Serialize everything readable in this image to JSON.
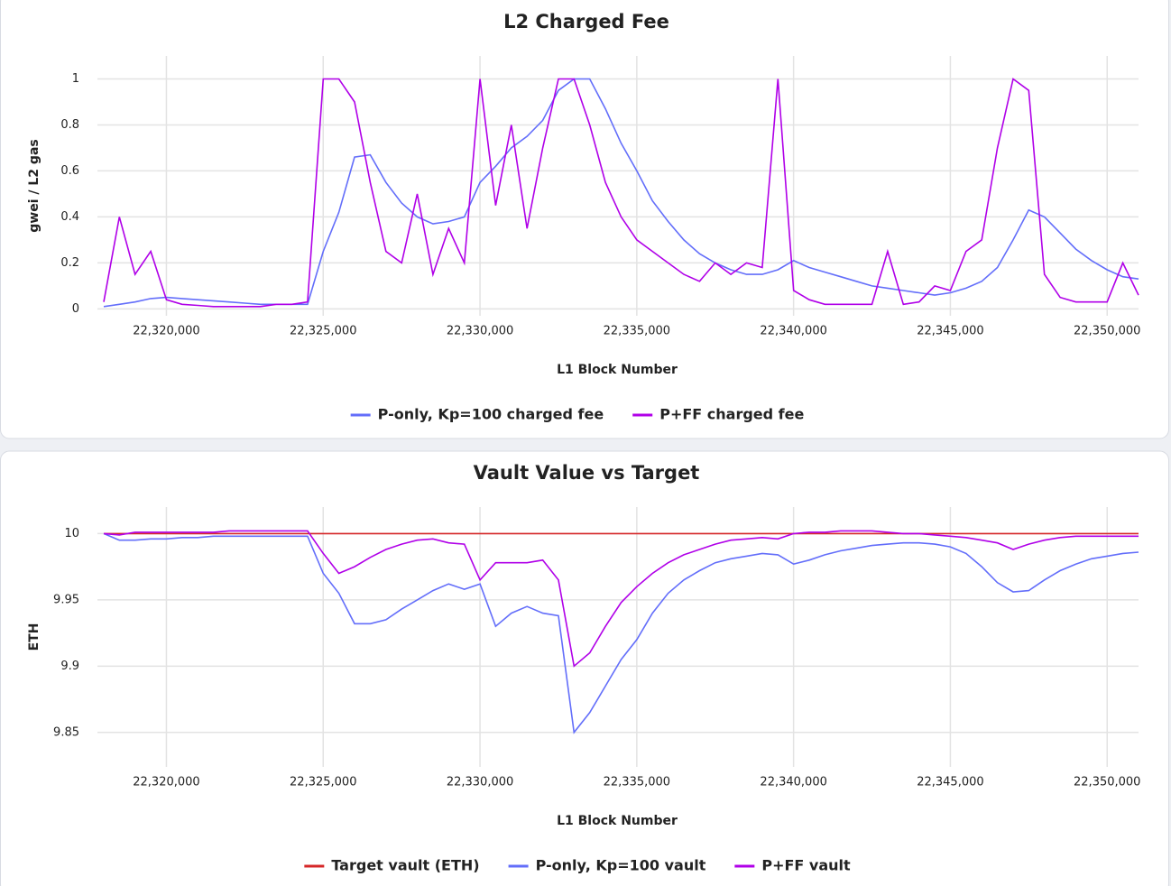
{
  "chart_data": [
    {
      "type": "line",
      "title": "L2 Charged Fee",
      "x_label": "L1 Block Number",
      "y_label": "gwei / L2 gas",
      "x": [
        22318000,
        22318500,
        22319000,
        22319500,
        22320000,
        22320500,
        22321000,
        22321500,
        22322000,
        22322500,
        22323000,
        22323500,
        22324000,
        22324500,
        22325000,
        22325500,
        22326000,
        22326500,
        22327000,
        22327500,
        22328000,
        22328500,
        22329000,
        22329500,
        22330000,
        22330500,
        22331000,
        22331500,
        22332000,
        22332500,
        22333000,
        22333500,
        22334000,
        22334500,
        22335000,
        22335500,
        22336000,
        22336500,
        22337000,
        22337500,
        22338000,
        22338500,
        22339000,
        22339500,
        22340000,
        22340500,
        22341000,
        22341500,
        22342000,
        22342500,
        22343000,
        22343500,
        22344000,
        22344500,
        22345000,
        22345500,
        22346000,
        22346500,
        22347000,
        22347500,
        22348000,
        22348500,
        22349000,
        22349500,
        22350000,
        22350500,
        22351000
      ],
      "series": [
        {
          "name": "P-only, Kp=100 charged fee",
          "color": "#636efa",
          "values": [
            0.01,
            0.02,
            0.03,
            0.045,
            0.05,
            0.045,
            0.04,
            0.035,
            0.03,
            0.025,
            0.02,
            0.02,
            0.02,
            0.02,
            0.25,
            0.42,
            0.66,
            0.67,
            0.55,
            0.46,
            0.4,
            0.37,
            0.38,
            0.4,
            0.55,
            0.62,
            0.7,
            0.75,
            0.82,
            0.95,
            1,
            1,
            0.87,
            0.72,
            0.6,
            0.47,
            0.38,
            0.3,
            0.24,
            0.2,
            0.17,
            0.15,
            0.15,
            0.17,
            0.21,
            0.18,
            0.16,
            0.14,
            0.12,
            0.1,
            0.09,
            0.08,
            0.07,
            0.06,
            0.07,
            0.09,
            0.12,
            0.18,
            0.3,
            0.43,
            0.4,
            0.33,
            0.26,
            0.21,
            0.17,
            0.14,
            0.13
          ]
        },
        {
          "name": "P+FF charged fee",
          "color": "#b000e8",
          "values": [
            0.03,
            0.4,
            0.15,
            0.25,
            0.04,
            0.02,
            0.015,
            0.01,
            0.01,
            0.01,
            0.01,
            0.02,
            0.02,
            0.03,
            1,
            1,
            0.9,
            0.55,
            0.25,
            0.2,
            0.5,
            0.15,
            0.35,
            0.2,
            1,
            0.45,
            0.8,
            0.35,
            0.7,
            1,
            1,
            0.8,
            0.55,
            0.4,
            0.3,
            0.25,
            0.2,
            0.15,
            0.12,
            0.2,
            0.15,
            0.2,
            0.18,
            1,
            0.08,
            0.04,
            0.02,
            0.02,
            0.02,
            0.02,
            0.25,
            0.02,
            0.03,
            0.1,
            0.08,
            0.25,
            0.3,
            0.7,
            1,
            0.95,
            0.15,
            0.05,
            0.03,
            0.03,
            0.03,
            0.2,
            0.06
          ]
        }
      ],
      "xlim": [
        22317800,
        22351000
      ],
      "ylim": [
        -0.03,
        1.1
      ],
      "xticks": [
        {
          "value": 22320000,
          "label": "22,320,000"
        },
        {
          "value": 22325000,
          "label": "22,325,000"
        },
        {
          "value": 22330000,
          "label": "22,330,000"
        },
        {
          "value": 22335000,
          "label": "22,335,000"
        },
        {
          "value": 22340000,
          "label": "22,340,000"
        },
        {
          "value": 22345000,
          "label": "22,345,000"
        },
        {
          "value": 22350000,
          "label": "22,350,000"
        }
      ],
      "yticks": [
        0,
        0.2,
        0.4,
        0.6,
        0.8,
        1
      ],
      "grid": true
    },
    {
      "type": "line",
      "title": "Vault Value vs Target",
      "x_label": "L1 Block Number",
      "y_label": "ETH",
      "x": [
        22318000,
        22318500,
        22319000,
        22319500,
        22320000,
        22320500,
        22321000,
        22321500,
        22322000,
        22322500,
        22323000,
        22323500,
        22324000,
        22324500,
        22325000,
        22325500,
        22326000,
        22326500,
        22327000,
        22327500,
        22328000,
        22328500,
        22329000,
        22329500,
        22330000,
        22330500,
        22331000,
        22331500,
        22332000,
        22332500,
        22333000,
        22333500,
        22334000,
        22334500,
        22335000,
        22335500,
        22336000,
        22336500,
        22337000,
        22337500,
        22338000,
        22338500,
        22339000,
        22339500,
        22340000,
        22340500,
        22341000,
        22341500,
        22342000,
        22342500,
        22343000,
        22343500,
        22344000,
        22344500,
        22345000,
        22345500,
        22346000,
        22346500,
        22347000,
        22347500,
        22348000,
        22348500,
        22349000,
        22349500,
        22350000,
        22350500,
        22351000
      ],
      "series": [
        {
          "name": "Target vault (ETH)",
          "color": "#d62728",
          "values": [
            10,
            10,
            10,
            10,
            10,
            10,
            10,
            10,
            10,
            10,
            10,
            10,
            10,
            10,
            10,
            10,
            10,
            10,
            10,
            10,
            10,
            10,
            10,
            10,
            10,
            10,
            10,
            10,
            10,
            10,
            10,
            10,
            10,
            10,
            10,
            10,
            10,
            10,
            10,
            10,
            10,
            10,
            10,
            10,
            10,
            10,
            10,
            10,
            10,
            10,
            10,
            10,
            10,
            10,
            10,
            10,
            10,
            10,
            10,
            10,
            10,
            10,
            10,
            10,
            10,
            10,
            10
          ]
        },
        {
          "name": "P-only, Kp=100 vault",
          "color": "#636efa",
          "values": [
            10,
            9.995,
            9.995,
            9.996,
            9.996,
            9.997,
            9.997,
            9.998,
            9.998,
            9.998,
            9.998,
            9.998,
            9.998,
            9.998,
            9.97,
            9.955,
            9.932,
            9.932,
            9.935,
            9.943,
            9.95,
            9.957,
            9.962,
            9.958,
            9.962,
            9.93,
            9.94,
            9.945,
            9.94,
            9.938,
            9.85,
            9.865,
            9.885,
            9.905,
            9.92,
            9.94,
            9.955,
            9.965,
            9.972,
            9.978,
            9.981,
            9.983,
            9.985,
            9.984,
            9.977,
            9.98,
            9.984,
            9.987,
            9.989,
            9.991,
            9.992,
            9.993,
            9.993,
            9.992,
            9.99,
            9.985,
            9.975,
            9.963,
            9.956,
            9.957,
            9.965,
            9.972,
            9.977,
            9.981,
            9.983,
            9.985,
            9.986
          ]
        },
        {
          "name": "P+FF vault",
          "color": "#b000e8",
          "values": [
            10,
            9.999,
            10.001,
            10.001,
            10.001,
            10.001,
            10.001,
            10.001,
            10.002,
            10.002,
            10.002,
            10.002,
            10.002,
            10.002,
            9.985,
            9.97,
            9.975,
            9.982,
            9.988,
            9.992,
            9.995,
            9.996,
            9.993,
            9.992,
            9.965,
            9.978,
            9.978,
            9.978,
            9.98,
            9.965,
            9.9,
            9.91,
            9.93,
            9.948,
            9.96,
            9.97,
            9.978,
            9.984,
            9.988,
            9.992,
            9.995,
            9.996,
            9.997,
            9.996,
            10.0,
            10.001,
            10.001,
            10.002,
            10.002,
            10.002,
            10.001,
            10.0,
            10.0,
            9.999,
            9.998,
            9.997,
            9.995,
            9.993,
            9.988,
            9.992,
            9.995,
            9.997,
            9.998,
            9.998,
            9.998,
            9.998,
            9.998
          ]
        }
      ],
      "xlim": [
        22317800,
        22351000
      ],
      "ylim": [
        9.824,
        10.02
      ],
      "xticks": [
        {
          "value": 22320000,
          "label": "22,320,000"
        },
        {
          "value": 22325000,
          "label": "22,325,000"
        },
        {
          "value": 22330000,
          "label": "22,330,000"
        },
        {
          "value": 22335000,
          "label": "22,335,000"
        },
        {
          "value": 22340000,
          "label": "22,340,000"
        },
        {
          "value": 22345000,
          "label": "22,345,000"
        },
        {
          "value": 22350000,
          "label": "22,350,000"
        }
      ],
      "yticks": [
        9.85,
        9.9,
        9.95,
        10
      ],
      "grid": true
    }
  ]
}
